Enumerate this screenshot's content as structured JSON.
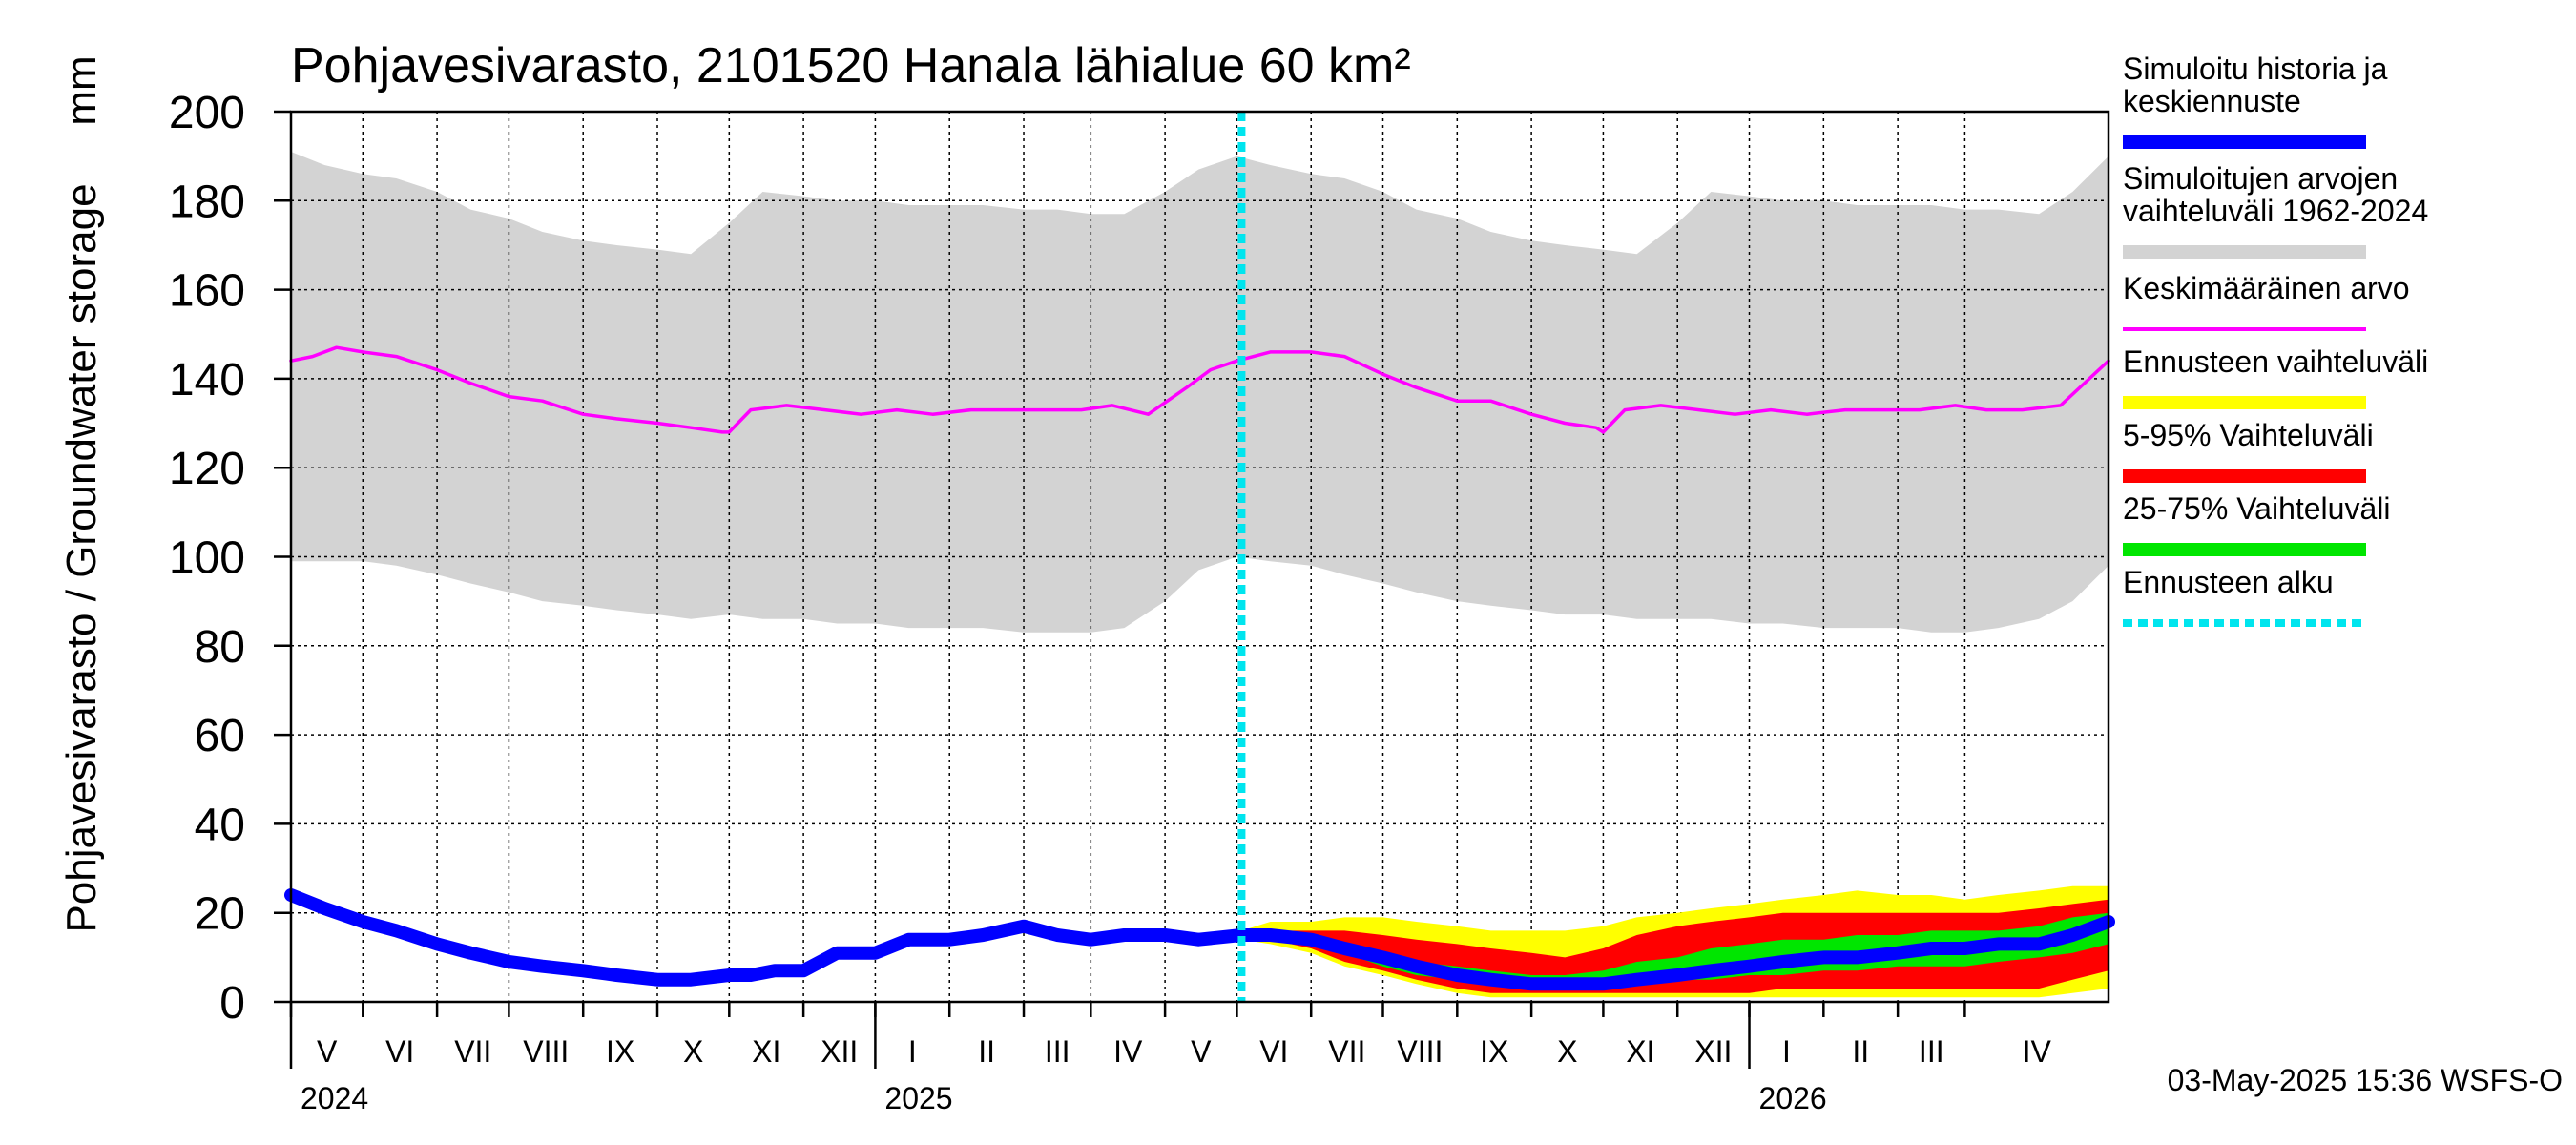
{
  "title": "Pohjavesivarasto, 2101520 Hanala lähialue 60 km²",
  "footer": "03-May-2025 15:36 WSFS-O",
  "colors": {
    "history": "#0000ff",
    "range": "#d3d3d3",
    "mean": "#ff00ff",
    "forecast_range": "#ffff00",
    "p5_95": "#ff0000",
    "p25_75": "#00e600",
    "forecast_start": "#00e5ee"
  },
  "legend": [
    {
      "key": "history",
      "lines": [
        "Simuloitu historia ja",
        "keskiennuste"
      ],
      "style": "thick"
    },
    {
      "key": "range",
      "lines": [
        "Simuloitujen arvojen",
        "vaihteluväli 1962-2024"
      ],
      "style": "thick"
    },
    {
      "key": "mean",
      "lines": [
        "Keskimääräinen arvo"
      ],
      "style": "thin"
    },
    {
      "key": "forecast_range",
      "lines": [
        "Ennusteen vaihteluväli"
      ],
      "style": "thick"
    },
    {
      "key": "p5_95",
      "lines": [
        "5-95% Vaihteluväli"
      ],
      "style": "thick"
    },
    {
      "key": "p25_75",
      "lines": [
        "25-75% Vaihteluväli"
      ],
      "style": "thick"
    },
    {
      "key": "forecast_start",
      "lines": [
        "Ennusteen alku"
      ],
      "style": "dashed"
    }
  ],
  "chart_data": {
    "type": "area",
    "title": "Pohjavesivarasto, 2101520 Hanala lähialue 60 km²",
    "ylabel": "Pohjavesivarasto / Groundwater storage",
    "yunit": "mm",
    "ylim": [
      0,
      200
    ],
    "yticks": [
      0,
      20,
      40,
      60,
      80,
      100,
      120,
      140,
      160,
      180,
      200
    ],
    "xlim": [
      "2024-04-01",
      "2026-04-30"
    ],
    "forecast_start": "2025-05-03",
    "month_ticks": [
      {
        "date": "2024-04-01",
        "label": "V"
      },
      {
        "date": "2024-05-01",
        "label": "VI"
      },
      {
        "date": "2024-06-01",
        "label": "VII"
      },
      {
        "date": "2024-07-01",
        "label": "VIII"
      },
      {
        "date": "2024-08-01",
        "label": "IX"
      },
      {
        "date": "2024-09-01",
        "label": "X"
      },
      {
        "date": "2024-10-01",
        "label": "XI"
      },
      {
        "date": "2024-11-01",
        "label": "XII"
      },
      {
        "date": "2024-12-01",
        "label": "I"
      },
      {
        "date": "2025-01-01",
        "label": "II"
      },
      {
        "date": "2025-02-01",
        "label": "III"
      },
      {
        "date": "2025-03-01",
        "label": "IV"
      },
      {
        "date": "2025-04-01",
        "label": "V"
      },
      {
        "date": "2025-05-01",
        "label": "VI"
      },
      {
        "date": "2025-06-01",
        "label": "VII"
      },
      {
        "date": "2025-07-01",
        "label": "VIII"
      },
      {
        "date": "2025-08-01",
        "label": "IX"
      },
      {
        "date": "2025-09-01",
        "label": "X"
      },
      {
        "date": "2025-10-01",
        "label": "XI"
      },
      {
        "date": "2025-11-01",
        "label": "XII"
      },
      {
        "date": "2025-12-01",
        "label": "I"
      },
      {
        "date": "2026-01-01",
        "label": "II"
      },
      {
        "date": "2026-02-01",
        "label": "III"
      },
      {
        "date": "2026-03-01",
        "label": "IV"
      }
    ],
    "year_ticks": [
      {
        "date": "2024-04-01",
        "label": "2024"
      },
      {
        "date": "2024-12-01",
        "label": "2025"
      },
      {
        "date": "2025-12-01",
        "label": "2026"
      }
    ],
    "range_band": {
      "x": [
        "2024-04-01",
        "2024-04-15",
        "2024-05-01",
        "2024-05-15",
        "2024-06-01",
        "2024-06-15",
        "2024-07-01",
        "2024-07-15",
        "2024-08-01",
        "2024-08-15",
        "2024-09-01",
        "2024-09-15",
        "2024-10-01",
        "2024-10-15",
        "2024-11-01",
        "2024-11-15",
        "2024-12-01",
        "2024-12-15",
        "2025-01-01",
        "2025-01-15",
        "2025-02-01",
        "2025-02-15",
        "2025-03-01",
        "2025-03-15",
        "2025-04-01",
        "2025-04-15",
        "2025-05-01",
        "2025-05-15",
        "2025-06-01",
        "2025-06-15",
        "2025-07-01",
        "2025-07-15",
        "2025-08-01",
        "2025-08-15",
        "2025-09-01",
        "2025-09-15",
        "2025-10-01",
        "2025-10-15",
        "2025-11-01",
        "2025-11-15",
        "2025-12-01",
        "2025-12-15",
        "2026-01-01",
        "2026-01-15",
        "2026-02-01",
        "2026-02-15",
        "2026-03-01",
        "2026-03-15",
        "2026-04-01",
        "2026-04-15",
        "2026-04-30"
      ],
      "upper": [
        191,
        188,
        186,
        185,
        182,
        178,
        176,
        173,
        171,
        170,
        169,
        168,
        175,
        182,
        181,
        180,
        180,
        179,
        179,
        179,
        178,
        178,
        177,
        177,
        182,
        187,
        190,
        188,
        186,
        185,
        182,
        178,
        176,
        173,
        171,
        170,
        169,
        168,
        175,
        182,
        181,
        180,
        180,
        179,
        179,
        179,
        178,
        178,
        177,
        182,
        190
      ],
      "lower": [
        99,
        99,
        99,
        98,
        96,
        94,
        92,
        90,
        89,
        88,
        87,
        86,
        87,
        86,
        86,
        85,
        85,
        84,
        84,
        84,
        83,
        83,
        83,
        84,
        90,
        97,
        100,
        99,
        98,
        96,
        94,
        92,
        90,
        89,
        88,
        87,
        87,
        86,
        86,
        86,
        85,
        85,
        84,
        84,
        84,
        83,
        83,
        84,
        86,
        90,
        98
      ]
    },
    "series": [
      {
        "name": "Keskimääräinen arvo",
        "key": "mean",
        "x": [
          "2024-04-01",
          "2024-04-10",
          "2024-04-20",
          "2024-05-01",
          "2024-05-15",
          "2024-06-01",
          "2024-06-15",
          "2024-07-01",
          "2024-07-15",
          "2024-08-01",
          "2024-08-15",
          "2024-09-01",
          "2024-09-15",
          "2024-09-28",
          "2024-10-01",
          "2024-10-10",
          "2024-10-25",
          "2024-11-10",
          "2024-11-25",
          "2024-12-10",
          "2024-12-25",
          "2025-01-10",
          "2025-01-25",
          "2025-02-10",
          "2025-02-25",
          "2025-03-10",
          "2025-03-25",
          "2025-04-10",
          "2025-04-20",
          "2025-05-01",
          "2025-05-15",
          "2025-06-01",
          "2025-06-15",
          "2025-07-01",
          "2025-07-15",
          "2025-08-01",
          "2025-08-15",
          "2025-09-01",
          "2025-09-15",
          "2025-09-28",
          "2025-10-01",
          "2025-10-10",
          "2025-10-25",
          "2025-11-10",
          "2025-11-25",
          "2025-12-10",
          "2025-12-25",
          "2026-01-10",
          "2026-01-25",
          "2026-02-10",
          "2026-02-25",
          "2026-03-10",
          "2026-03-25",
          "2026-04-10",
          "2026-04-30"
        ],
        "y": [
          144,
          145,
          147,
          146,
          145,
          142,
          139,
          136,
          135,
          132,
          131,
          130,
          129,
          128,
          128,
          133,
          134,
          133,
          132,
          133,
          132,
          133,
          133,
          133,
          133,
          134,
          132,
          138,
          142,
          144,
          146,
          146,
          145,
          141,
          138,
          135,
          135,
          132,
          130,
          129,
          128,
          133,
          134,
          133,
          132,
          133,
          132,
          133,
          133,
          133,
          134,
          133,
          133,
          134,
          144
        ]
      },
      {
        "name": "Simuloitu historia ja keskiennuste",
        "key": "history",
        "x": [
          "2024-04-01",
          "2024-04-15",
          "2024-05-01",
          "2024-05-15",
          "2024-06-01",
          "2024-06-15",
          "2024-07-01",
          "2024-07-15",
          "2024-08-01",
          "2024-08-15",
          "2024-09-01",
          "2024-09-15",
          "2024-10-01",
          "2024-10-10",
          "2024-10-20",
          "2024-11-01",
          "2024-11-15",
          "2024-12-01",
          "2024-12-15",
          "2025-01-01",
          "2025-01-15",
          "2025-02-01",
          "2025-02-15",
          "2025-03-01",
          "2025-03-15",
          "2025-04-01",
          "2025-04-15",
          "2025-05-03",
          "2025-05-15",
          "2025-06-01",
          "2025-06-15",
          "2025-07-01",
          "2025-07-15",
          "2025-08-01",
          "2025-08-15",
          "2025-09-01",
          "2025-09-15",
          "2025-10-01",
          "2025-10-15",
          "2025-11-01",
          "2025-11-15",
          "2025-12-01",
          "2025-12-15",
          "2026-01-01",
          "2026-01-15",
          "2026-02-01",
          "2026-02-15",
          "2026-03-01",
          "2026-03-15",
          "2026-04-01",
          "2026-04-15",
          "2026-04-30"
        ],
        "y": [
          24,
          21,
          18,
          16,
          13,
          11,
          9,
          8,
          7,
          6,
          5,
          5,
          6,
          6,
          7,
          7,
          11,
          11,
          14,
          14,
          15,
          17,
          15,
          14,
          15,
          15,
          14,
          15,
          15,
          14,
          12,
          10,
          8,
          6,
          5,
          4,
          4,
          4,
          5,
          6,
          7,
          8,
          9,
          10,
          10,
          11,
          12,
          12,
          13,
          13,
          15,
          18
        ]
      }
    ],
    "forecast_bands": [
      {
        "name": "Ennusteen vaihteluväli",
        "key": "forecast_range",
        "x": [
          "2025-05-03",
          "2025-05-15",
          "2025-06-01",
          "2025-06-15",
          "2025-07-01",
          "2025-07-15",
          "2025-08-01",
          "2025-08-15",
          "2025-09-01",
          "2025-09-15",
          "2025-10-01",
          "2025-10-15",
          "2025-11-01",
          "2025-11-15",
          "2025-12-01",
          "2025-12-15",
          "2026-01-01",
          "2026-01-15",
          "2026-02-01",
          "2026-02-15",
          "2026-03-01",
          "2026-03-15",
          "2026-04-01",
          "2026-04-15",
          "2026-04-30"
        ],
        "upper": [
          16,
          18,
          18,
          19,
          19,
          18,
          17,
          16,
          16,
          16,
          17,
          19,
          20,
          21,
          22,
          23,
          24,
          25,
          24,
          24,
          23,
          24,
          25,
          26,
          26
        ],
        "lower": [
          14,
          13,
          11,
          8,
          6,
          4,
          2,
          1,
          1,
          1,
          1,
          1,
          1,
          1,
          1,
          1,
          1,
          1,
          1,
          1,
          1,
          1,
          1,
          2,
          3
        ]
      },
      {
        "name": "5-95% Vaihteluväli",
        "key": "p5_95",
        "x": [
          "2025-05-03",
          "2025-05-15",
          "2025-06-01",
          "2025-06-15",
          "2025-07-01",
          "2025-07-15",
          "2025-08-01",
          "2025-08-15",
          "2025-09-01",
          "2025-09-15",
          "2025-10-01",
          "2025-10-15",
          "2025-11-01",
          "2025-11-15",
          "2025-12-01",
          "2025-12-15",
          "2026-01-01",
          "2026-01-15",
          "2026-02-01",
          "2026-02-15",
          "2026-03-01",
          "2026-03-15",
          "2026-04-01",
          "2026-04-15",
          "2026-04-30"
        ],
        "upper": [
          15,
          16,
          16,
          16,
          15,
          14,
          13,
          12,
          11,
          10,
          12,
          15,
          17,
          18,
          19,
          20,
          20,
          20,
          20,
          20,
          20,
          20,
          21,
          22,
          23
        ],
        "lower": [
          15,
          14,
          12,
          9,
          7,
          5,
          3,
          2,
          2,
          2,
          2,
          2,
          2,
          2,
          2,
          3,
          3,
          3,
          3,
          3,
          3,
          3,
          3,
          5,
          7
        ]
      },
      {
        "name": "25-75% Vaihteluväli",
        "key": "p25_75",
        "x": [
          "2025-05-03",
          "2025-05-15",
          "2025-06-01",
          "2025-06-15",
          "2025-07-01",
          "2025-07-15",
          "2025-08-01",
          "2025-08-15",
          "2025-09-01",
          "2025-09-15",
          "2025-10-01",
          "2025-10-15",
          "2025-11-01",
          "2025-11-15",
          "2025-12-01",
          "2025-12-15",
          "2026-01-01",
          "2026-01-15",
          "2026-02-01",
          "2026-02-15",
          "2026-03-01",
          "2026-03-15",
          "2026-04-01",
          "2026-04-15",
          "2026-04-30"
        ],
        "upper": [
          15,
          15,
          14,
          13,
          11,
          9,
          8,
          7,
          6,
          6,
          7,
          9,
          10,
          12,
          13,
          14,
          14,
          15,
          15,
          16,
          16,
          16,
          17,
          19,
          20
        ],
        "lower": [
          15,
          14,
          13,
          11,
          8,
          6,
          5,
          4,
          3,
          3,
          3,
          4,
          5,
          5,
          6,
          6,
          7,
          7,
          8,
          8,
          8,
          9,
          10,
          11,
          13
        ]
      }
    ],
    "legend_placement": "right",
    "grid": true
  }
}
